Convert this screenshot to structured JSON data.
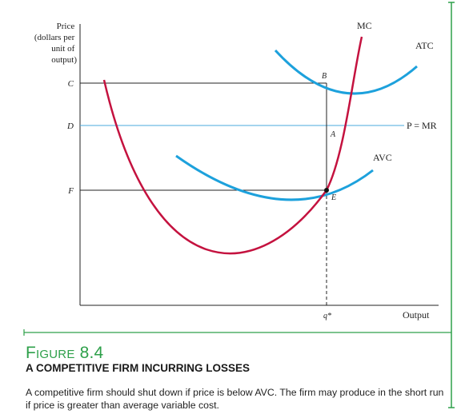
{
  "axes": {
    "y_label_lines": [
      "Price",
      "(dollars per",
      "unit of",
      "output)"
    ],
    "x_label": "Output",
    "y_ticks": [
      "C",
      "D",
      "F"
    ],
    "x_ticks": [
      "q*"
    ]
  },
  "curves": {
    "mc": "MC",
    "atc": "ATC",
    "avc": "AVC",
    "demand": "P = MR"
  },
  "points": {
    "b": "B",
    "a": "A",
    "e": "E"
  },
  "figure": {
    "number": "Figure 8.4",
    "title": "A COMPETITIVE FIRM INCURRING LOSSES",
    "caption": "A competitive firm should shut down if price is below AVC. The firm may produce in the short run if price is greater than average variable cost."
  },
  "colors": {
    "mc_curve": "#c4123f",
    "cost_curves": "#1da1dc",
    "price_line": "#4aa8dc",
    "frame_green": "#2ea04a"
  }
}
